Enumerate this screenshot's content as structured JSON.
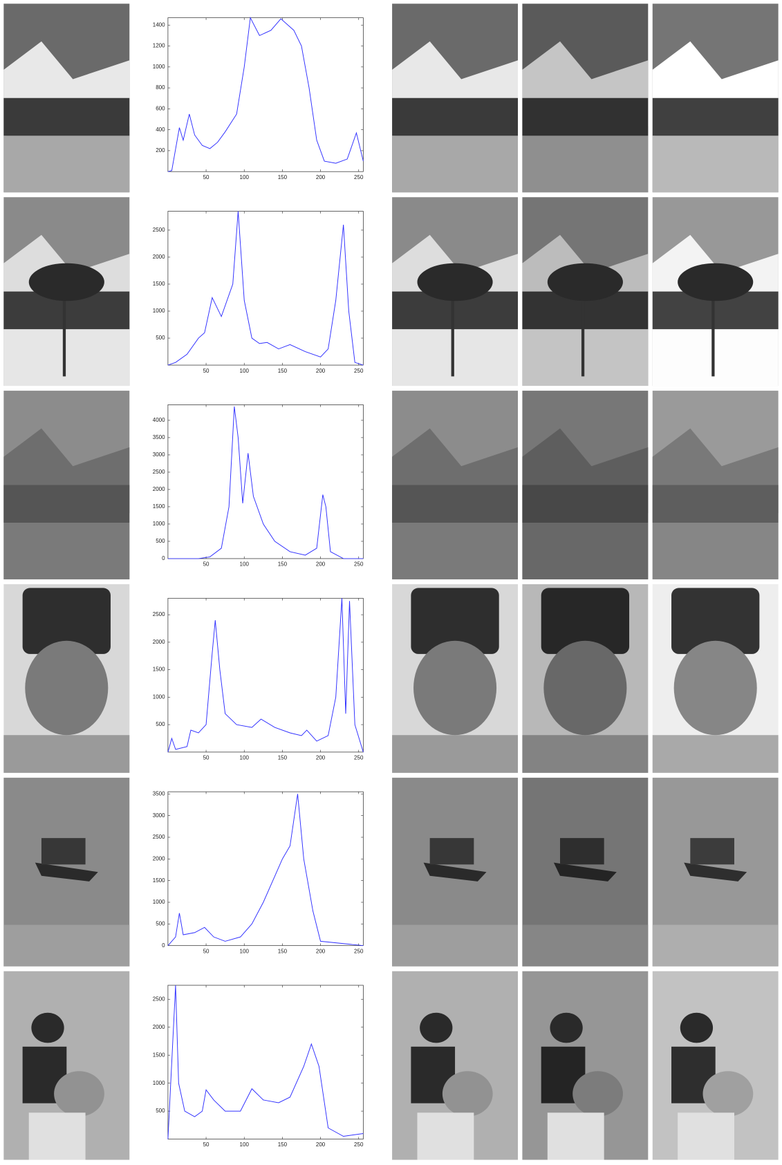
{
  "chart_data": [
    {
      "type": "line",
      "color": "#3030ff",
      "grid": false,
      "x": [
        0,
        5,
        15,
        20,
        28,
        35,
        45,
        55,
        65,
        75,
        90,
        100,
        108,
        120,
        135,
        148,
        165,
        175,
        185,
        195,
        205,
        220,
        235,
        247,
        256
      ],
      "values": [
        0,
        10,
        420,
        300,
        550,
        350,
        250,
        220,
        280,
        380,
        550,
        1000,
        1470,
        1300,
        1350,
        1460,
        1350,
        1200,
        800,
        300,
        100,
        80,
        120,
        370,
        100
      ],
      "xlim": [
        0,
        256
      ],
      "ylim": [
        0,
        1470
      ],
      "xticks": [
        50,
        100,
        150,
        200,
        250
      ],
      "yticks": [
        200,
        400,
        600,
        800,
        1000,
        1200,
        1400
      ]
    },
    {
      "type": "line",
      "color": "#3030ff",
      "grid": false,
      "x": [
        0,
        10,
        25,
        40,
        48,
        58,
        70,
        85,
        92,
        100,
        110,
        120,
        130,
        145,
        160,
        180,
        200,
        210,
        220,
        230,
        237,
        245,
        256
      ],
      "values": [
        0,
        50,
        200,
        500,
        600,
        1250,
        900,
        1500,
        2850,
        1200,
        500,
        400,
        420,
        300,
        380,
        250,
        150,
        300,
        1200,
        2600,
        1000,
        50,
        0
      ],
      "xlim": [
        0,
        256
      ],
      "ylim": [
        0,
        2850
      ],
      "xticks": [
        50,
        100,
        150,
        200,
        250
      ],
      "yticks": [
        500,
        1000,
        1500,
        2000,
        2500
      ]
    },
    {
      "type": "line",
      "color": "#3030ff",
      "grid": false,
      "x": [
        0,
        40,
        55,
        70,
        80,
        87,
        92,
        98,
        105,
        112,
        125,
        140,
        160,
        180,
        195,
        203,
        207,
        213,
        230,
        256
      ],
      "values": [
        0,
        0,
        50,
        300,
        1500,
        4400,
        3500,
        1600,
        3050,
        1800,
        1000,
        500,
        200,
        100,
        300,
        1850,
        1500,
        200,
        0,
        0
      ],
      "xlim": [
        0,
        256
      ],
      "ylim": [
        0,
        4450
      ],
      "xticks": [
        50,
        100,
        150,
        200,
        250
      ],
      "yticks": [
        0,
        500,
        1000,
        1500,
        2000,
        2500,
        3000,
        3500,
        4000
      ]
    },
    {
      "type": "line",
      "color": "#3030ff",
      "grid": false,
      "x": [
        0,
        5,
        10,
        25,
        30,
        40,
        50,
        58,
        62,
        68,
        75,
        90,
        110,
        122,
        140,
        160,
        175,
        182,
        195,
        210,
        220,
        228,
        233,
        238,
        245,
        256
      ],
      "values": [
        0,
        250,
        50,
        100,
        400,
        350,
        500,
        1800,
        2400,
        1500,
        700,
        500,
        450,
        600,
        450,
        350,
        300,
        400,
        200,
        300,
        1000,
        2800,
        700,
        2750,
        500,
        0
      ],
      "xlim": [
        0,
        256
      ],
      "ylim": [
        0,
        2800
      ],
      "xticks": [
        50,
        100,
        150,
        200,
        250
      ],
      "yticks": [
        500,
        1000,
        1500,
        2000,
        2500
      ]
    },
    {
      "type": "line",
      "color": "#3030ff",
      "grid": false,
      "x": [
        0,
        10,
        15,
        20,
        35,
        48,
        60,
        75,
        95,
        110,
        125,
        140,
        150,
        160,
        170,
        178,
        190,
        200,
        256
      ],
      "values": [
        0,
        200,
        750,
        250,
        300,
        420,
        200,
        100,
        200,
        500,
        1000,
        1600,
        2000,
        2300,
        3500,
        2000,
        800,
        100,
        0
      ],
      "xlim": [
        0,
        256
      ],
      "ylim": [
        0,
        3550
      ],
      "xticks": [
        50,
        100,
        150,
        200,
        250
      ],
      "yticks": [
        0,
        500,
        1000,
        1500,
        2000,
        2500,
        3000,
        3500
      ]
    },
    {
      "type": "line",
      "color": "#3030ff",
      "grid": false,
      "x": [
        0,
        10,
        14,
        22,
        35,
        45,
        50,
        60,
        75,
        95,
        110,
        125,
        145,
        160,
        178,
        188,
        198,
        210,
        230,
        256
      ],
      "values": [
        0,
        2750,
        1000,
        500,
        400,
        500,
        880,
        700,
        500,
        500,
        900,
        700,
        650,
        750,
        1300,
        1700,
        1300,
        200,
        50,
        100
      ],
      "xlim": [
        0,
        256
      ],
      "ylim": [
        0,
        2750
      ],
      "xticks": [
        50,
        100,
        150,
        200,
        250
      ],
      "yticks": [
        500,
        1000,
        1500,
        2000,
        2500
      ]
    }
  ]
}
